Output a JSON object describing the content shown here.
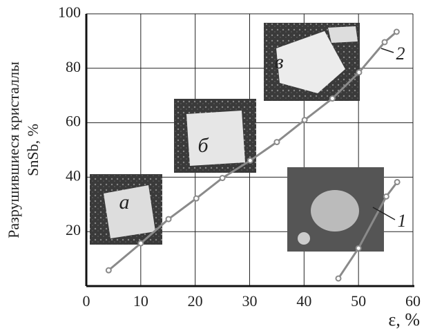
{
  "chart_data": {
    "type": "line",
    "xlabel": "ε, %",
    "ylabel": [
      "Разрушившиеся кристаллы",
      "SnSb, %"
    ],
    "xlim": [
      0,
      60
    ],
    "ylim": [
      0,
      100
    ],
    "xticks": [
      0,
      10,
      20,
      30,
      40,
      50,
      60
    ],
    "yticks": [
      20,
      40,
      60,
      80,
      100
    ],
    "grid": true,
    "series": [
      {
        "name": "1",
        "color": "#8a8a8a",
        "x": [
          46.3,
          50,
          55.1,
          57.1
        ],
        "values": [
          2.8,
          13.9,
          32.9,
          38.2
        ]
      },
      {
        "name": "2",
        "color": "#8a8a8a",
        "x": [
          4.1,
          10,
          15.1,
          20.2,
          25,
          30.1,
          35,
          40.1,
          45.2,
          50.1,
          54.8,
          57
        ],
        "values": [
          5.8,
          15.7,
          24.6,
          32.2,
          39.7,
          46.1,
          52.9,
          61,
          68.9,
          78.5,
          89.6,
          93.4
        ]
      }
    ],
    "annotations": [
      "а",
      "б",
      "в"
    ]
  }
}
